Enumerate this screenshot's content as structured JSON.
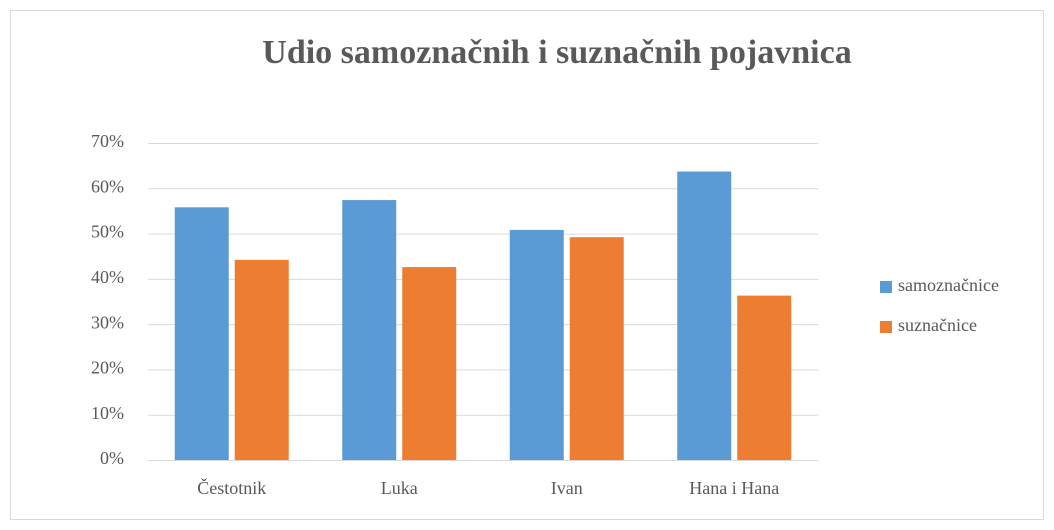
{
  "chart_data": {
    "type": "bar",
    "title": "Udio samoznačnih i suznačnih pojavnica",
    "categories": [
      "Čestotnik",
      "Luka",
      "Ivan",
      "Hana i Hana"
    ],
    "series": [
      {
        "name": "samoznačnice",
        "color": "#5b9bd5",
        "values": [
          55.8,
          57.4,
          50.8,
          63.7
        ]
      },
      {
        "name": "suznačnice",
        "color": "#ed7d31",
        "values": [
          44.2,
          42.6,
          49.2,
          36.3
        ]
      }
    ],
    "ylim": [
      0,
      70
    ],
    "yticks": [
      {
        "value": 0,
        "label": "0%"
      },
      {
        "value": 10,
        "label": "10%"
      },
      {
        "value": 20,
        "label": "20%"
      },
      {
        "value": 30,
        "label": "30%"
      },
      {
        "value": 40,
        "label": "40%"
      },
      {
        "value": 50,
        "label": "50%"
      },
      {
        "value": 60,
        "label": "60%"
      },
      {
        "value": 70,
        "label": "70%"
      }
    ],
    "grid": true,
    "legend": "right"
  }
}
